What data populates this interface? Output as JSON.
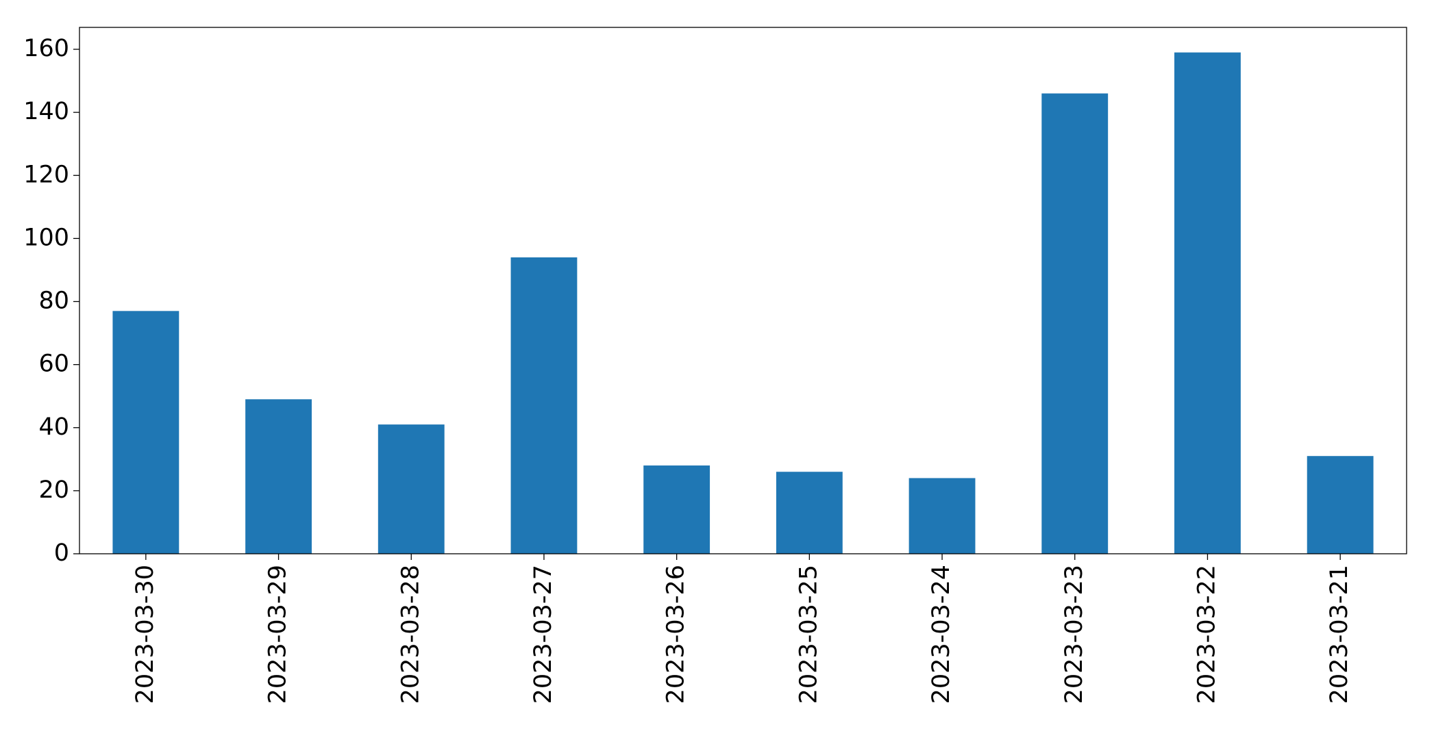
{
  "chart_data": {
    "type": "bar",
    "categories": [
      "2023-03-30",
      "2023-03-29",
      "2023-03-28",
      "2023-03-27",
      "2023-03-26",
      "2023-03-25",
      "2023-03-24",
      "2023-03-23",
      "2023-03-22",
      "2023-03-21"
    ],
    "values": [
      77,
      49,
      41,
      94,
      28,
      26,
      24,
      146,
      159,
      31
    ],
    "color": "#1f77b4",
    "ylim": [
      0,
      166.95
    ],
    "yticks": [
      0,
      20,
      40,
      60,
      80,
      100,
      120,
      140,
      160
    ],
    "grid": false
  }
}
